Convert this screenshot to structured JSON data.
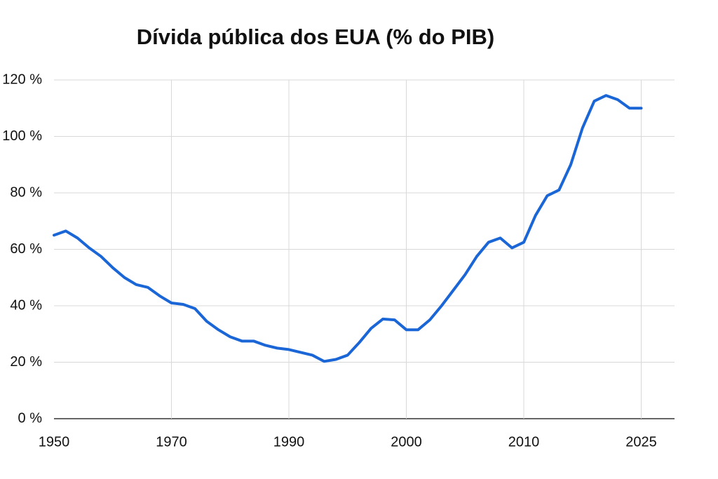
{
  "chart_data": {
    "type": "line",
    "title": "Dívida pública dos EUA (% do PIB)",
    "categories": [
      "1950",
      null,
      null,
      null,
      null,
      null,
      null,
      null,
      null,
      null,
      "1970",
      null,
      null,
      null,
      null,
      null,
      null,
      null,
      null,
      null,
      "1990",
      null,
      null,
      null,
      null,
      null,
      null,
      null,
      null,
      null,
      "2000",
      null,
      null,
      null,
      null,
      null,
      null,
      null,
      null,
      null,
      "2010",
      null,
      null,
      null,
      null,
      null,
      null,
      null,
      null,
      null,
      "2025"
    ],
    "series": [
      {
        "color": "#1a66d6",
        "values": [
          65,
          66.5,
          64,
          60.5,
          57.5,
          53.5,
          50,
          47.5,
          46.5,
          43.5,
          41,
          40.5,
          39,
          34.5,
          31.5,
          29,
          27.5,
          27.5,
          26,
          25,
          24.5,
          23.5,
          22.5,
          20.3,
          21,
          22.5,
          27,
          32,
          35.3,
          35,
          31.5,
          31.5,
          35,
          40,
          45.5,
          51,
          57.5,
          62.5,
          64,
          60.5,
          62.5,
          72,
          79,
          81,
          90,
          103,
          112.5,
          114.5,
          113,
          110,
          110
        ]
      }
    ],
    "ylim": [
      0,
      120
    ],
    "yticks": [
      {
        "value": 0,
        "label": "0 %"
      },
      {
        "value": 20,
        "label": "20 %"
      },
      {
        "value": 40,
        "label": "40 %"
      },
      {
        "value": 60,
        "label": "60 %"
      },
      {
        "value": 80,
        "label": "80 %"
      },
      {
        "value": 100,
        "label": "100 %"
      },
      {
        "value": 120,
        "label": "120 %"
      }
    ],
    "grid": true
  }
}
